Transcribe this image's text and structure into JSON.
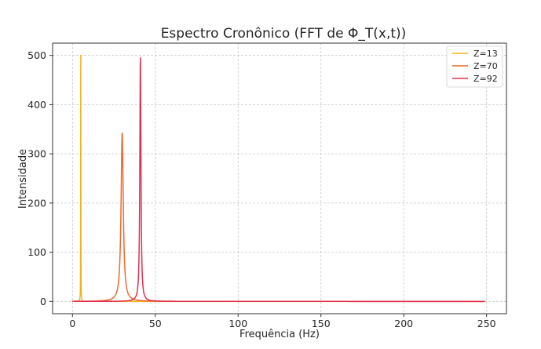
{
  "chart_data": {
    "type": "line",
    "title": "Espectro Cronônico (FFT de Φ_T(x,t))",
    "xlabel": "Frequência (Hz)",
    "ylabel": "Intensidade",
    "xlim": [
      -12,
      262
    ],
    "ylim": [
      -25,
      525
    ],
    "xticks": [
      0,
      50,
      100,
      150,
      200,
      250
    ],
    "yticks": [
      0,
      100,
      200,
      300,
      400,
      500
    ],
    "grid": true,
    "legend_position": "top-right",
    "series": [
      {
        "name": "Z=13",
        "color": "#f2b21c",
        "peak_x": 5,
        "peak_y": 500,
        "gamma": 0.06
      },
      {
        "name": "Z=70",
        "color": "#ee6a2d",
        "peak_x": 30,
        "peak_y": 342,
        "gamma": 0.8
      },
      {
        "name": "Z=92",
        "color": "#e0304f",
        "peak_x": 41,
        "peak_y": 495,
        "gamma": 0.4
      }
    ],
    "x_range": [
      0,
      249
    ]
  }
}
